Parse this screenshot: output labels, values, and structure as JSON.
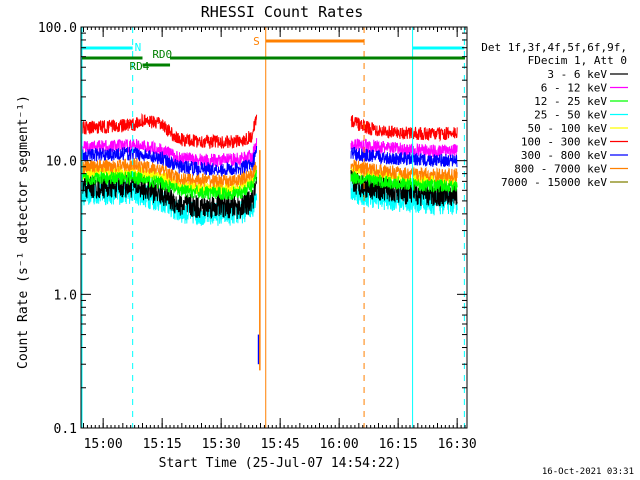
{
  "chart_data": {
    "type": "line",
    "title": "RHESSI Count Rates",
    "xlabel": "Start Time (25-Jul-07 14:54:22)",
    "ylabel": "Count Rate (s⁻¹ detector segment⁻¹)",
    "yscale": "log",
    "ylim": [
      0.1,
      100
    ],
    "xlim": [
      "14:54:22",
      "16:32:30"
    ],
    "x_ticks": [
      "15:00",
      "15:15",
      "15:30",
      "15:45",
      "16:00",
      "16:15",
      "16:30"
    ],
    "y_ticks": [
      "0.1",
      "1.0",
      "10.0",
      "100.0"
    ],
    "legend_header": [
      "Det 1f,3f,4f,5f,6f,9f,",
      "FDecim 1, Att 0"
    ],
    "legend_position": "right",
    "series": [
      {
        "name": "3 - 6 keV",
        "color": "#000000",
        "segments": [
          {
            "t": [
              "14:54",
              "15:08",
              "15:12",
              "15:15",
              "15:19",
              "15:24",
              "15:30",
              "15:33",
              "15:35",
              "15:38",
              "15:39"
            ],
            "values": [
              6.3,
              6.5,
              6.0,
              5.7,
              4.7,
              4.5,
              4.6,
              4.5,
              4.5,
              5.0,
              6.5
            ]
          },
          {
            "t": [
              "16:03",
              "16:06",
              "16:12",
              "16:18",
              "16:24",
              "16:30"
            ],
            "values": [
              7.0,
              6.5,
              6.0,
              5.7,
              5.5,
              5.6
            ]
          }
        ]
      },
      {
        "name": "6 - 12 keV",
        "color": "#ff00ff",
        "segments": [
          {
            "t": [
              "14:54",
              "15:08",
              "15:12",
              "15:15",
              "15:19",
              "15:24",
              "15:30",
              "15:33",
              "15:35",
              "15:38",
              "15:39"
            ],
            "values": [
              12.5,
              13.0,
              12.5,
              12.0,
              10.5,
              10.2,
              10.0,
              10.2,
              10.3,
              11.0,
              13.5
            ]
          },
          {
            "t": [
              "16:03",
              "16:06",
              "16:12",
              "16:18",
              "16:24",
              "16:30"
            ],
            "values": [
              13.5,
              13.0,
              12.5,
              12.0,
              11.8,
              12.0
            ]
          }
        ]
      },
      {
        "name": "12 - 25 keV",
        "color": "#00ff00",
        "segments": [
          {
            "t": [
              "14:54",
              "15:08",
              "15:12",
              "15:15",
              "15:19",
              "15:24",
              "15:30",
              "15:33",
              "15:35",
              "15:38",
              "15:39"
            ],
            "values": [
              7.3,
              7.5,
              7.0,
              6.8,
              6.0,
              5.8,
              5.7,
              5.7,
              5.8,
              6.5,
              8.0
            ]
          },
          {
            "t": [
              "16:03",
              "16:06",
              "16:12",
              "16:18",
              "16:24",
              "16:30"
            ],
            "values": [
              7.6,
              7.3,
              6.9,
              6.7,
              6.5,
              6.5
            ]
          }
        ]
      },
      {
        "name": "25 - 50 keV",
        "color": "#00ffff",
        "segments": [
          {
            "t": [
              "14:54",
              "15:08",
              "15:12",
              "15:15",
              "15:19",
              "15:24",
              "15:30",
              "15:33",
              "15:35",
              "15:38",
              "15:39"
            ],
            "values": [
              5.6,
              5.8,
              5.3,
              5.0,
              4.2,
              4.0,
              4.0,
              4.0,
              4.1,
              4.6,
              5.8
            ]
          },
          {
            "t": [
              "16:03",
              "16:06",
              "16:12",
              "16:18",
              "16:24",
              "16:30"
            ],
            "values": [
              6.0,
              5.6,
              5.2,
              5.0,
              4.8,
              4.9
            ]
          }
        ]
      },
      {
        "name": "50 - 100 keV",
        "color": "#ffff00",
        "segments": [
          {
            "t": [
              "14:54",
              "15:08",
              "15:12",
              "15:15",
              "15:19",
              "15:24",
              "15:30",
              "15:33",
              "15:35",
              "15:38",
              "15:39"
            ],
            "values": [
              8.0,
              8.2,
              7.8,
              7.5,
              6.5,
              6.3,
              6.2,
              6.2,
              6.3,
              7.0,
              8.5
            ]
          },
          {
            "t": [
              "16:03",
              "16:06",
              "16:12",
              "16:18",
              "16:24",
              "16:30"
            ],
            "values": [
              8.3,
              8.0,
              7.6,
              7.3,
              7.1,
              7.1
            ]
          }
        ]
      },
      {
        "name": "100 - 300 keV",
        "color": "#ff0000",
        "segments": [
          {
            "t": [
              "14:54",
              "15:08",
              "15:10",
              "15:12",
              "15:15",
              "15:19",
              "15:24",
              "15:30",
              "15:33",
              "15:35",
              "15:38",
              "15:39"
            ],
            "values": [
              17.5,
              18.5,
              20.0,
              19.5,
              18.5,
              14.5,
              14.0,
              13.8,
              13.8,
              14.0,
              15.5,
              22.0
            ]
          },
          {
            "t": [
              "16:03",
              "16:06",
              "16:12",
              "16:18",
              "16:24",
              "16:30"
            ],
            "values": [
              20.0,
              18.0,
              16.5,
              16.0,
              15.8,
              16.0
            ]
          }
        ]
      },
      {
        "name": "300 - 800 keV",
        "color": "#0000ff",
        "segments": [
          {
            "t": [
              "14:54",
              "15:08",
              "15:12",
              "15:15",
              "15:19",
              "15:24",
              "15:30",
              "15:33",
              "15:35",
              "15:38",
              "15:39"
            ],
            "values": [
              11.0,
              11.3,
              10.8,
              10.5,
              9.0,
              8.8,
              8.6,
              8.6,
              8.8,
              9.5,
              12.0
            ]
          },
          {
            "t": [
              "16:03",
              "16:06",
              "16:12",
              "16:18",
              "16:24",
              "16:30"
            ],
            "values": [
              11.5,
              11.0,
              10.5,
              10.3,
              10.0,
              10.0
            ]
          }
        ]
      },
      {
        "name": "800 - 7000 keV",
        "color": "#ff8000",
        "segments": [
          {
            "t": [
              "14:54",
              "15:08",
              "15:12",
              "15:15",
              "15:19",
              "15:24",
              "15:30",
              "15:33",
              "15:35",
              "15:38",
              "15:39"
            ],
            "values": [
              9.0,
              9.3,
              8.8,
              8.5,
              7.4,
              7.2,
              7.0,
              7.0,
              7.2,
              8.0,
              9.5
            ]
          },
          {
            "t": [
              "16:03",
              "16:06",
              "16:12",
              "16:18",
              "16:24",
              "16:30"
            ],
            "values": [
              9.3,
              8.8,
              8.3,
              8.0,
              7.8,
              7.8
            ]
          }
        ]
      },
      {
        "name": "7000 - 15000 keV",
        "color": "#808000",
        "segments": []
      }
    ],
    "markers": {
      "vertical_lines": [
        {
          "t": "14:54:22",
          "color": "#00ffff",
          "style": "solid"
        },
        {
          "t": "15:07:30",
          "color": "#00ffff",
          "style": "dashed"
        },
        {
          "t": "16:18:40",
          "color": "#00ffff",
          "style": "solid"
        },
        {
          "t": "16:31:50",
          "color": "#00ffff",
          "style": "dashed"
        },
        {
          "t": "15:41:20",
          "color": "#ff8000",
          "style": "solid"
        },
        {
          "t": "16:06:20",
          "color": "#ff8000",
          "style": "dashed"
        }
      ],
      "bars": [
        {
          "label": "N",
          "color": "#00ffff",
          "segments": [
            [
              "14:54:22",
              "15:07:30"
            ],
            [
              "16:18:40",
              "16:31:50"
            ]
          ]
        },
        {
          "label": "S",
          "color": "#ff8000",
          "segments": [
            [
              "15:41:20",
              "16:06:20"
            ]
          ]
        },
        {
          "label": "RD4",
          "color": "#008000",
          "segments": [
            [
              "15:10:00",
              "15:17:00"
            ]
          ]
        },
        {
          "label": "RD0",
          "color": "#008000",
          "segments": [
            [
              "14:54:22",
              "15:10:00"
            ],
            [
              "15:17:00",
              "16:32:30"
            ]
          ]
        }
      ]
    },
    "spikes": [
      {
        "t": "15:39:30",
        "color": "#0000ff",
        "values": [
          0.3,
          0.5
        ]
      },
      {
        "t": "15:39:50",
        "color": "#ff8000",
        "values": [
          0.27,
          12.0
        ]
      }
    ],
    "footer": "16-Oct-2021 03:31"
  }
}
